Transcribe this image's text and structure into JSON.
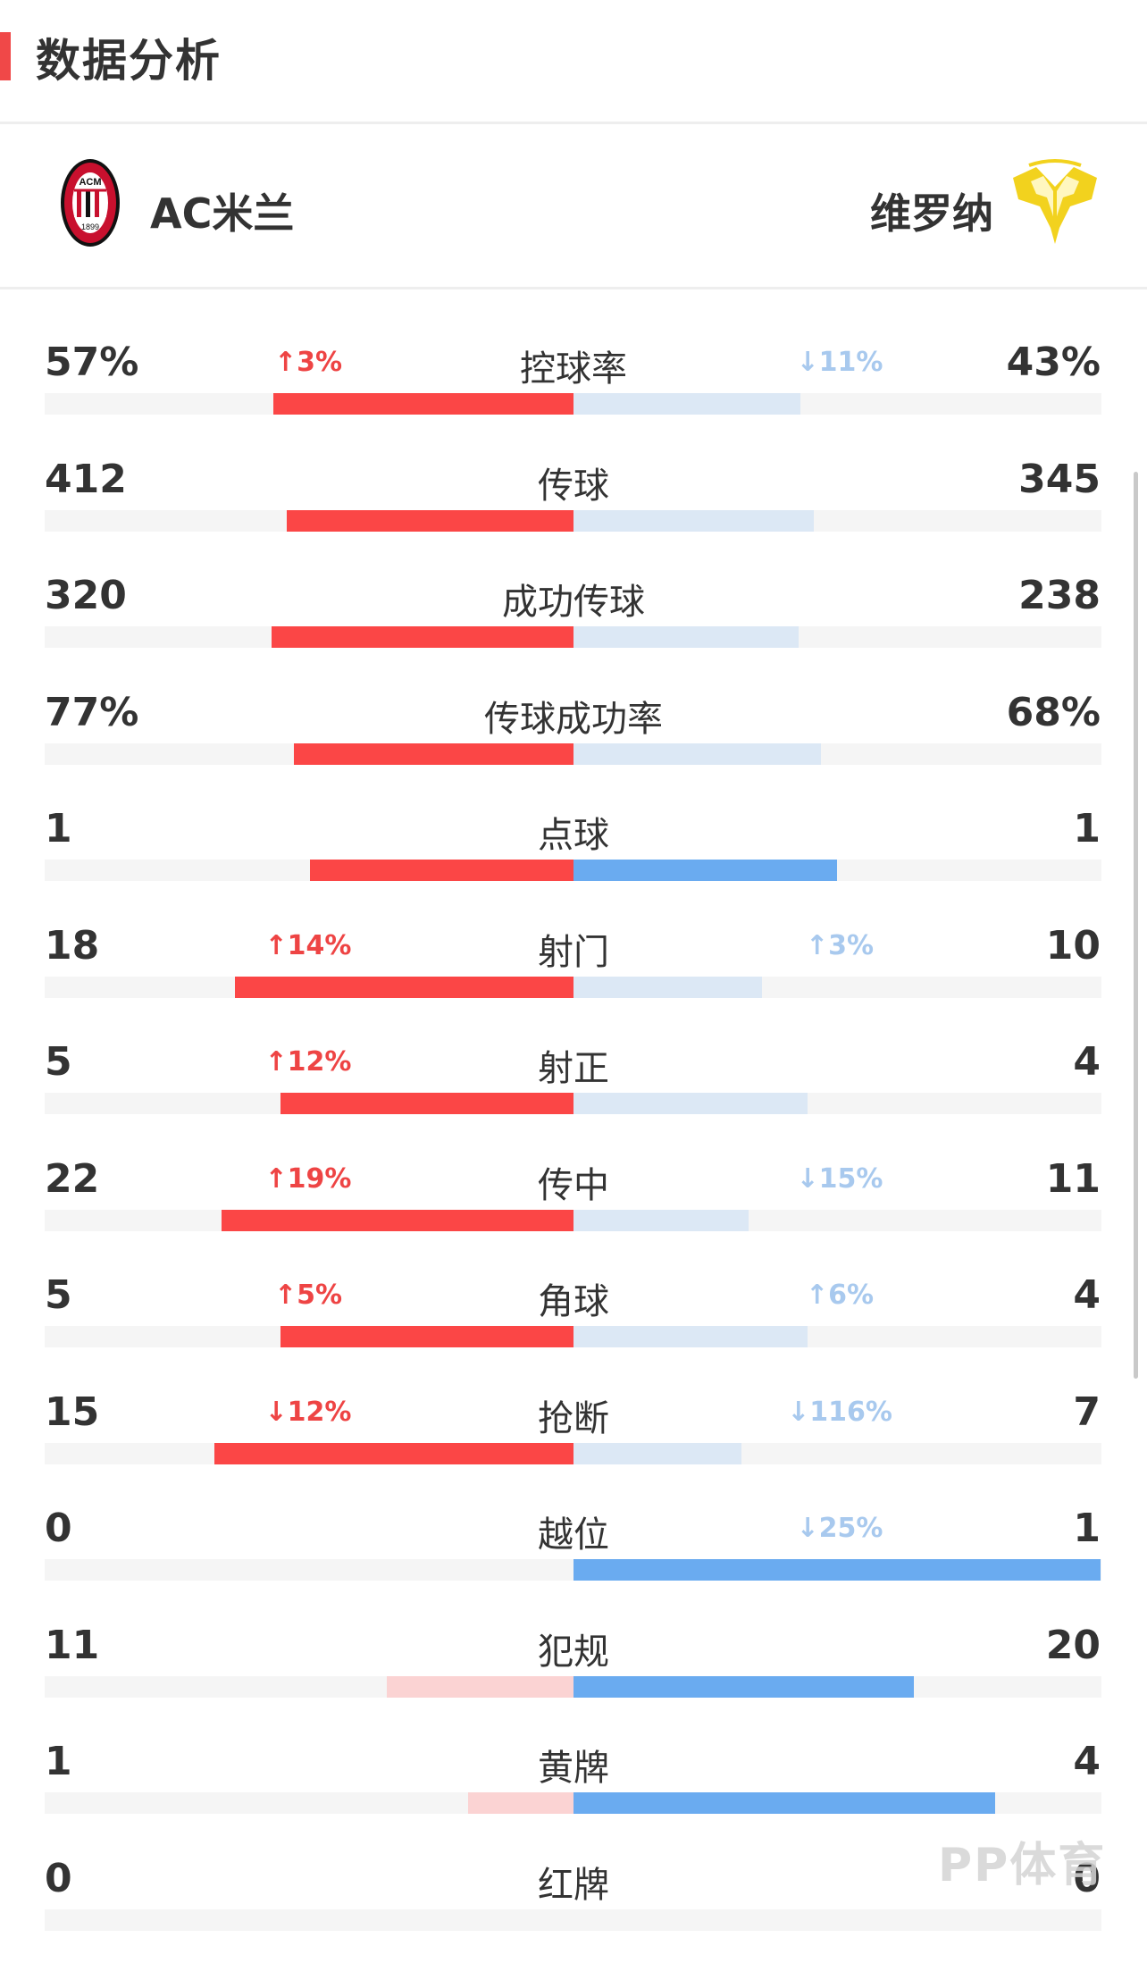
{
  "header": {
    "title": "数据分析"
  },
  "teams": {
    "home": {
      "name": "AC米兰",
      "logo_icon": "ac-milan-crest-icon"
    },
    "away": {
      "name": "维罗纳",
      "logo_icon": "hellas-verona-crest-icon"
    }
  },
  "colors": {
    "accent_red": "#f04848",
    "home_bar_strong": "#fb4646",
    "home_bar_weak": "#fbd3d3",
    "away_bar_strong": "#6aabf0",
    "away_bar_weak": "#dce8f5",
    "track": "#f5f5f5"
  },
  "stats": [
    {
      "label": "控球率",
      "home": "57%",
      "away": "43%",
      "home_delta": "↑3%",
      "away_delta": "↓11%",
      "home_share": 0.57,
      "away_share": 0.43,
      "leader": "home"
    },
    {
      "label": "传球",
      "home": "412",
      "away": "345",
      "home_delta": "",
      "away_delta": "",
      "home_share": 0.544,
      "away_share": 0.456,
      "leader": "home"
    },
    {
      "label": "成功传球",
      "home": "320",
      "away": "238",
      "home_delta": "",
      "away_delta": "",
      "home_share": 0.573,
      "away_share": 0.427,
      "leader": "home"
    },
    {
      "label": "传球成功率",
      "home": "77%",
      "away": "68%",
      "home_delta": "",
      "away_delta": "",
      "home_share": 0.531,
      "away_share": 0.469,
      "leader": "home"
    },
    {
      "label": "点球",
      "home": "1",
      "away": "1",
      "home_delta": "",
      "away_delta": "",
      "home_share": 0.5,
      "away_share": 0.5,
      "leader": "tie"
    },
    {
      "label": "射门",
      "home": "18",
      "away": "10",
      "home_delta": "↑14%",
      "away_delta": "↑3%",
      "home_share": 0.643,
      "away_share": 0.357,
      "leader": "home"
    },
    {
      "label": "射正",
      "home": "5",
      "away": "4",
      "home_delta": "↑12%",
      "away_delta": "",
      "home_share": 0.556,
      "away_share": 0.444,
      "leader": "home"
    },
    {
      "label": "传中",
      "home": "22",
      "away": "11",
      "home_delta": "↑19%",
      "away_delta": "↓15%",
      "home_share": 0.667,
      "away_share": 0.333,
      "leader": "home"
    },
    {
      "label": "角球",
      "home": "5",
      "away": "4",
      "home_delta": "↑5%",
      "away_delta": "↑6%",
      "home_share": 0.556,
      "away_share": 0.444,
      "leader": "home"
    },
    {
      "label": "抢断",
      "home": "15",
      "away": "7",
      "home_delta": "↓12%",
      "away_delta": "↓116%",
      "home_share": 0.682,
      "away_share": 0.318,
      "leader": "home"
    },
    {
      "label": "越位",
      "home": "0",
      "away": "1",
      "home_delta": "",
      "away_delta": "↓25%",
      "home_share": 0,
      "away_share": 1,
      "leader": "away"
    },
    {
      "label": "犯规",
      "home": "11",
      "away": "20",
      "home_delta": "",
      "away_delta": "",
      "home_share": 0.355,
      "away_share": 0.645,
      "leader": "away"
    },
    {
      "label": "黄牌",
      "home": "1",
      "away": "4",
      "home_delta": "",
      "away_delta": "",
      "home_share": 0.2,
      "away_share": 0.8,
      "leader": "away"
    },
    {
      "label": "红牌",
      "home": "0",
      "away": "0",
      "home_delta": "",
      "away_delta": "",
      "home_share": 0,
      "away_share": 0,
      "leader": "none"
    }
  ],
  "watermark": {
    "text": "PP体育"
  }
}
